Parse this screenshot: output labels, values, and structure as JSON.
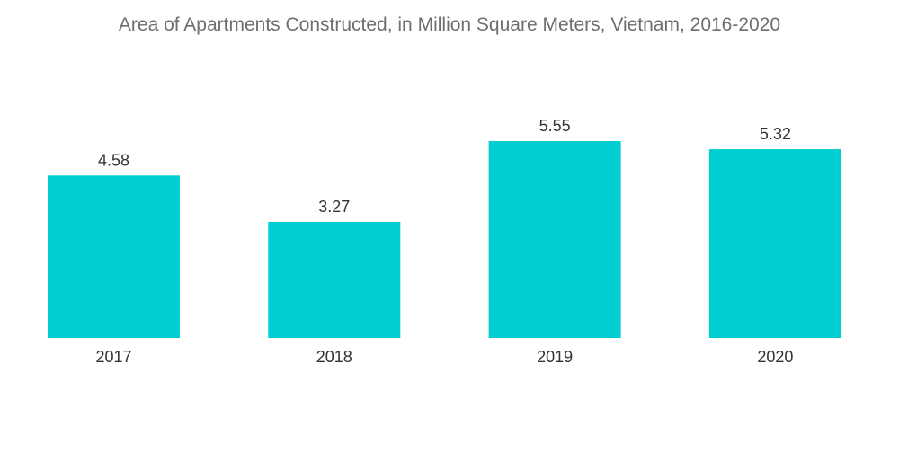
{
  "chart_data": {
    "type": "bar",
    "title": "Area of Apartments Constructed, in Million Square Meters, Vietnam, 2016-2020",
    "categories": [
      "2017",
      "2018",
      "2019",
      "2020"
    ],
    "values": [
      4.58,
      3.27,
      5.55,
      5.32
    ],
    "value_labels": [
      "4.58",
      "3.27",
      "5.55",
      "5.32"
    ],
    "xlabel": "",
    "ylabel": "",
    "ylim": [
      0,
      5.55
    ],
    "grid": false,
    "legend": "none",
    "bar_color": "#00ced1"
  }
}
